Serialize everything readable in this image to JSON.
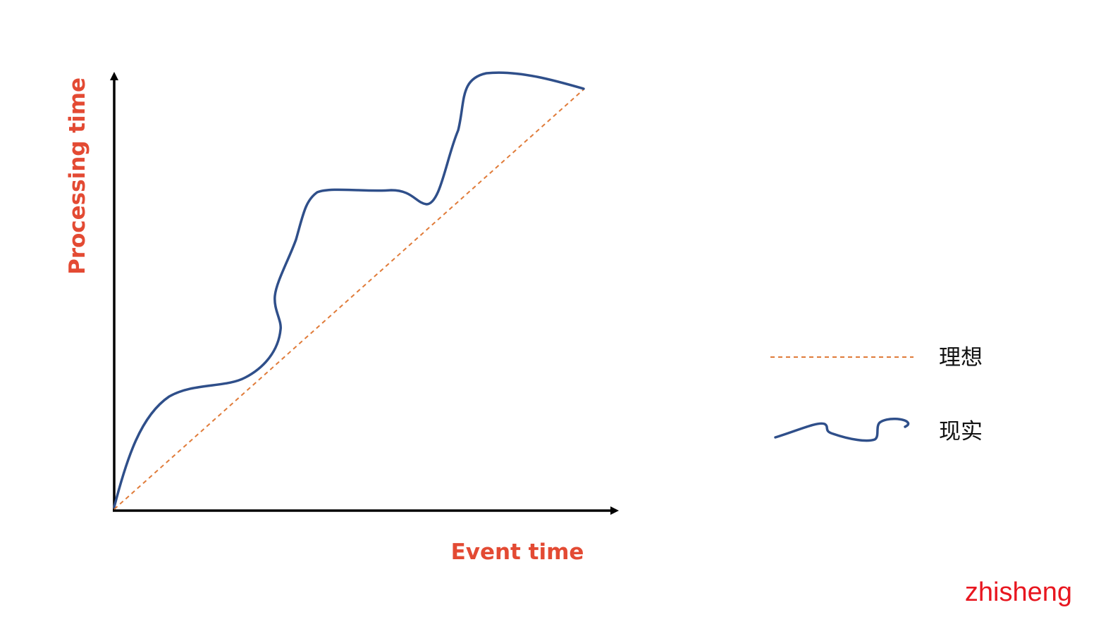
{
  "axes": {
    "x_label": "Event time",
    "y_label": "Processing time"
  },
  "legend": {
    "ideal_label": "理想",
    "actual_label": "现实"
  },
  "watermark": "zhisheng",
  "colors": {
    "axis": "#000000",
    "axis_label": "#e34a33",
    "ideal_line": "#e07b39",
    "actual_line": "#2f4f8a",
    "watermark": "#e8161f"
  },
  "line_styles": {
    "ideal": "dashed",
    "actual": "solid"
  }
}
